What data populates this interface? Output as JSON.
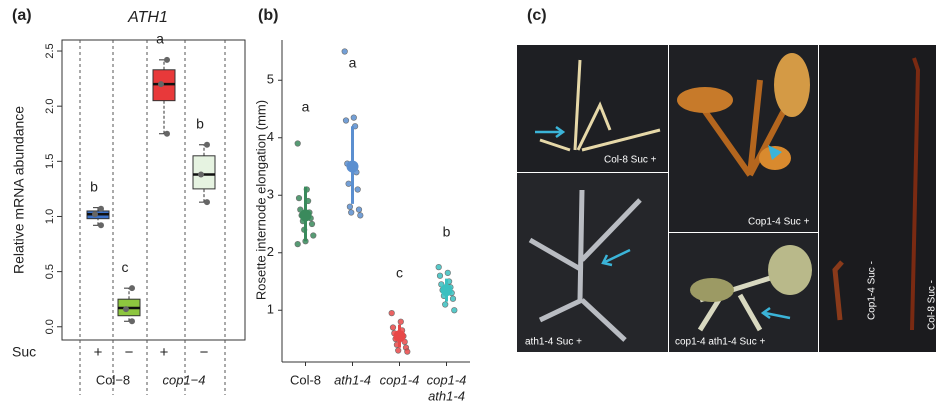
{
  "chart_data": [
    {
      "type": "box",
      "panel_label": "(a)",
      "title": "ATH1",
      "y_label": "Relative mRNA abundance",
      "ylim": [
        -0.12,
        2.6
      ],
      "yticks": [
        {
          "value": 0,
          "label": "0.0"
        },
        {
          "value": 0.5,
          "label": "0.5"
        },
        {
          "value": 1,
          "label": "1.0"
        },
        {
          "value": 1.5,
          "label": "1.5"
        },
        {
          "value": 2,
          "label": "2.0"
        },
        {
          "value": 2.5,
          "label": "2.5"
        }
      ],
      "row_title": "Suc",
      "suc_labels": [
        "+",
        "−",
        "+",
        "−"
      ],
      "groups": [
        "Col−8",
        "cop1−4"
      ],
      "letters": [
        "b",
        "c",
        "a",
        "b"
      ],
      "colors": [
        "#3b70c6",
        "#8dc63f",
        "#e8393a",
        "#e6f3e1"
      ],
      "boxes": [
        {
          "low": 0.92,
          "q1": 0.98,
          "median": 1.02,
          "q3": 1.05,
          "high": 1.08,
          "points": [
            1.07,
            1.02,
            0.92
          ]
        },
        {
          "low": 0.05,
          "q1": 0.1,
          "median": 0.17,
          "q3": 0.25,
          "high": 0.35,
          "points": [
            0.35,
            0.16,
            0.05
          ]
        },
        {
          "low": 1.75,
          "q1": 2.05,
          "median": 2.2,
          "q3": 2.33,
          "high": 2.42,
          "points": [
            2.42,
            2.2,
            1.75
          ]
        },
        {
          "low": 1.13,
          "q1": 1.25,
          "median": 1.38,
          "q3": 1.55,
          "high": 1.65,
          "points": [
            1.65,
            1.38,
            1.13
          ]
        }
      ]
    },
    {
      "type": "pointrange",
      "panel_label": "(b)",
      "y_label": "Rosette internode elongation (mm)",
      "ylim": [
        0.1,
        5.7
      ],
      "yticks": [
        1,
        2,
        3,
        4,
        5
      ],
      "categories": [
        [
          "Col-8"
        ],
        [
          "ath1-4"
        ],
        [
          "cop1-4"
        ],
        [
          "cop1-4",
          "ath1-4"
        ]
      ],
      "italic_categories": [
        false,
        true,
        true,
        true
      ],
      "letters": [
        "a",
        "a",
        "c",
        "b"
      ],
      "colors": [
        "#3a8a5c",
        "#5b8fd0",
        "#e84848",
        "#3ac0c0"
      ],
      "means": [
        2.65,
        3.5,
        0.55,
        1.35
      ],
      "error_low": [
        2.2,
        2.85,
        0.35,
        1.15
      ],
      "error_high": [
        3.15,
        4.2,
        0.75,
        1.55
      ],
      "points": [
        [
          3.9,
          3.1,
          2.95,
          2.9,
          2.75,
          2.7,
          2.65,
          2.6,
          2.55,
          2.5,
          2.4,
          2.3,
          2.2,
          2.15
        ],
        [
          5.5,
          4.35,
          4.3,
          4.2,
          3.55,
          3.4,
          3.2,
          3.1,
          2.8,
          2.75,
          2.7,
          2.65
        ],
        [
          0.95,
          0.8,
          0.7,
          0.65,
          0.6,
          0.55,
          0.5,
          0.45,
          0.4,
          0.35,
          0.3,
          0.28
        ],
        [
          1.75,
          1.65,
          1.6,
          1.5,
          1.45,
          1.4,
          1.35,
          1.3,
          1.25,
          1.2,
          1.1,
          1.0
        ]
      ]
    }
  ],
  "photo_panel": {
    "label": "(c)",
    "photos": [
      "Col-8 Suc +",
      "ath1-4 Suc +",
      "Cop1-4 Suc +",
      "cop1-4 ath1-4 Suc +",
      "Cop1-4 Suc -",
      "Col-8 Suc -"
    ]
  }
}
